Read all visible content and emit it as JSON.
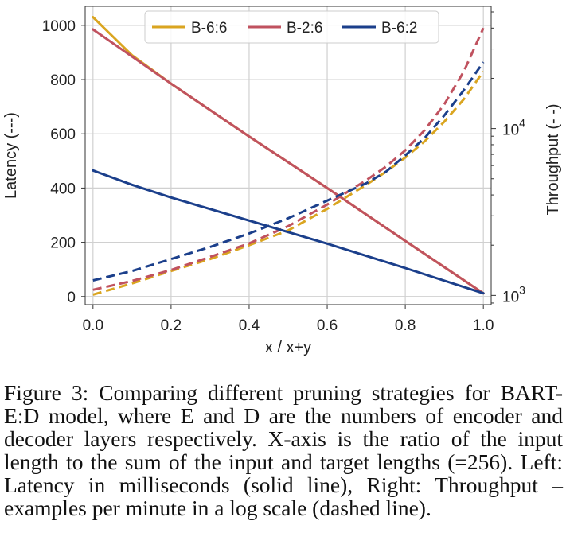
{
  "chart_data": {
    "type": "line",
    "xlabel": "x / x+y",
    "ylabel": "Latency (---)",
    "y2label": "Throughput (- -)",
    "xlim": [
      -0.02,
      1.02
    ],
    "ylim": [
      -30,
      1070
    ],
    "y2lim": [
      880,
      54000
    ],
    "y2scale": "log",
    "x_ticks": [
      0.0,
      0.2,
      0.4,
      0.6,
      0.8,
      1.0
    ],
    "x_tick_labels": [
      "0.0",
      "0.2",
      "0.4",
      "0.6",
      "0.8",
      "1.0"
    ],
    "y_ticks": [
      0,
      200,
      400,
      600,
      800,
      1000
    ],
    "y_tick_labels": [
      "0",
      "200",
      "400",
      "600",
      "800",
      "1000"
    ],
    "y2_ticks": [
      1000,
      10000
    ],
    "y2_tick_labels": [
      {
        "base": "10",
        "exp": "3"
      },
      {
        "base": "10",
        "exp": "4"
      }
    ],
    "grid": true,
    "legend_position": "top-center",
    "series": [
      {
        "name": "B-6:6",
        "color": "#DAA520",
        "latency": {
          "x": [
            0.0,
            0.1,
            0.2,
            0.4,
            0.6,
            0.8,
            1.0
          ],
          "y": [
            1030,
            890,
            785,
            590,
            400,
            205,
            12
          ]
        },
        "throughput": {
          "x": [
            0.0,
            0.1,
            0.2,
            0.3,
            0.4,
            0.5,
            0.6,
            0.7,
            0.75,
            0.8,
            0.85,
            0.9,
            0.95,
            1.0
          ],
          "y": [
            1010,
            1180,
            1400,
            1650,
            2000,
            2450,
            3300,
            4600,
            5500,
            6700,
            8400,
            11000,
            15000,
            22000
          ]
        }
      },
      {
        "name": "B-2:6",
        "color": "#C0525F",
        "latency": {
          "x": [
            0.0,
            0.2,
            0.4,
            0.6,
            0.8,
            1.0
          ],
          "y": [
            985,
            785,
            590,
            400,
            205,
            12
          ]
        },
        "throughput": {
          "x": [
            0.0,
            0.1,
            0.2,
            0.3,
            0.4,
            0.5,
            0.6,
            0.7,
            0.75,
            0.8,
            0.85,
            0.9,
            0.95,
            1.0
          ],
          "y": [
            1080,
            1220,
            1420,
            1700,
            2050,
            2600,
            3500,
            4900,
            5900,
            7400,
            9800,
            14000,
            22000,
            40000
          ]
        }
      },
      {
        "name": "B-6:2",
        "color": "#1B3F8B",
        "latency": {
          "x": [
            0.0,
            0.1,
            0.2,
            0.4,
            0.6,
            0.8,
            1.0
          ],
          "y": [
            465,
            412,
            365,
            280,
            195,
            105,
            12
          ]
        },
        "throughput": {
          "x": [
            0.0,
            0.1,
            0.2,
            0.3,
            0.4,
            0.5,
            0.6,
            0.7,
            0.75,
            0.8,
            0.85,
            0.9,
            0.95,
            1.0
          ],
          "y": [
            1230,
            1400,
            1650,
            1950,
            2350,
            2900,
            3700,
            4700,
            5500,
            6900,
            8800,
            12000,
            17000,
            25000
          ]
        }
      }
    ]
  },
  "caption": "Figure 3: Comparing different pruning strategies for BART-E:D model, where E and D are the numbers of encoder and decoder layers respectively. X-axis is the ratio of the input length to the sum of the input and target lengths (=256). Left: Latency in milliseconds (solid line), Right: Throughput – examples per minute in a log scale (dashed line)."
}
